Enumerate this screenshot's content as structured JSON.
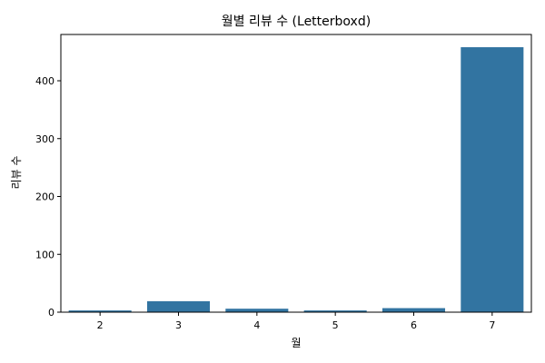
{
  "chart_data": {
    "type": "bar",
    "title": "월별 리뷰 수 (Letterboxd)",
    "xlabel": "월",
    "ylabel": "리뷰 수",
    "categories": [
      "2",
      "3",
      "4",
      "5",
      "6",
      "7"
    ],
    "values": [
      3,
      19,
      6,
      3,
      7,
      458
    ],
    "ylim": [
      0,
      480
    ],
    "yticks": [
      0,
      100,
      200,
      300,
      400
    ],
    "bar_color": "#3274a1",
    "grid": false,
    "legend": "none"
  }
}
